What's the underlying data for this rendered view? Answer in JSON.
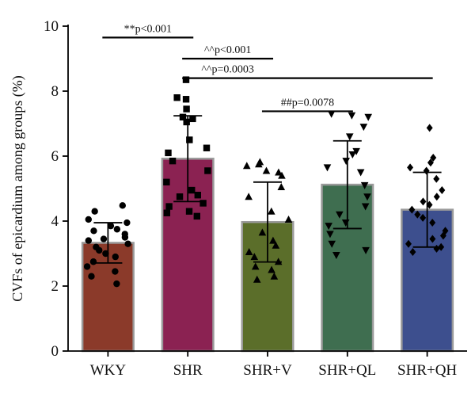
{
  "chart_data": {
    "type": "bar",
    "ylabel": "CVFs of epicardium among groups (%)",
    "xlabel": "",
    "title": "",
    "ylim": [
      0,
      10
    ],
    "yticks": [
      0,
      2,
      4,
      6,
      8,
      10
    ],
    "grid": false,
    "categories": [
      "WKY",
      "SHR",
      "SHR+V",
      "SHR+QL",
      "SHR+QH"
    ],
    "values": [
      3.33,
      5.92,
      3.97,
      5.12,
      4.35
    ],
    "error_sd": [
      0.62,
      1.32,
      1.23,
      1.35,
      1.15
    ],
    "colors": [
      "#8B3A2A",
      "#8B2252",
      "#5B6E2A",
      "#3F6E50",
      "#3D4F8E"
    ],
    "bar_edge_color": "#9a9a9a",
    "marker_shapes": [
      "circle",
      "square",
      "triangle",
      "inverted-triangle",
      "diamond"
    ],
    "points": [
      [
        4.48,
        4.3,
        4.05,
        3.95,
        3.85,
        3.75,
        3.7,
        3.6,
        3.5,
        3.45,
        3.4,
        3.3,
        3.2,
        3.1,
        3.0,
        2.9,
        2.75,
        2.6,
        2.45,
        2.3,
        2.07
      ],
      [
        8.35,
        7.8,
        7.75,
        7.45,
        7.2,
        7.15,
        7.05,
        6.5,
        6.25,
        6.1,
        5.85,
        5.55,
        5.2,
        4.95,
        4.8,
        4.75,
        4.55,
        4.45,
        4.3,
        4.25,
        4.15
      ],
      [
        5.82,
        5.75,
        5.7,
        5.55,
        5.5,
        5.4,
        5.05,
        4.75,
        4.3,
        4.05,
        3.65,
        3.4,
        3.25,
        3.05,
        2.9,
        2.75,
        2.6,
        2.5,
        2.3,
        2.2
      ],
      [
        7.3,
        7.25,
        7.2,
        6.9,
        6.6,
        6.15,
        6.05,
        5.85,
        5.65,
        5.5,
        5.1,
        4.75,
        4.45,
        4.2,
        3.95,
        3.85,
        3.6,
        3.3,
        3.1,
        2.95
      ],
      [
        6.87,
        5.95,
        5.8,
        5.65,
        5.55,
        5.3,
        4.95,
        4.75,
        4.6,
        4.5,
        4.35,
        4.2,
        4.1,
        3.95,
        3.7,
        3.55,
        3.45,
        3.3,
        3.2,
        3.15,
        3.05
      ]
    ],
    "annotations": [
      {
        "from": 0,
        "to": 1,
        "y": 9.65,
        "label": "**p<0.001"
      },
      {
        "from": 1,
        "to": 2,
        "y": 9.0,
        "label": "^^p<0.001"
      },
      {
        "from": 1,
        "to": 4,
        "y": 8.4,
        "label": "^^p=0.0003"
      },
      {
        "from": 2,
        "to": 3,
        "y": 7.38,
        "label": "##p=0.0078"
      }
    ]
  }
}
